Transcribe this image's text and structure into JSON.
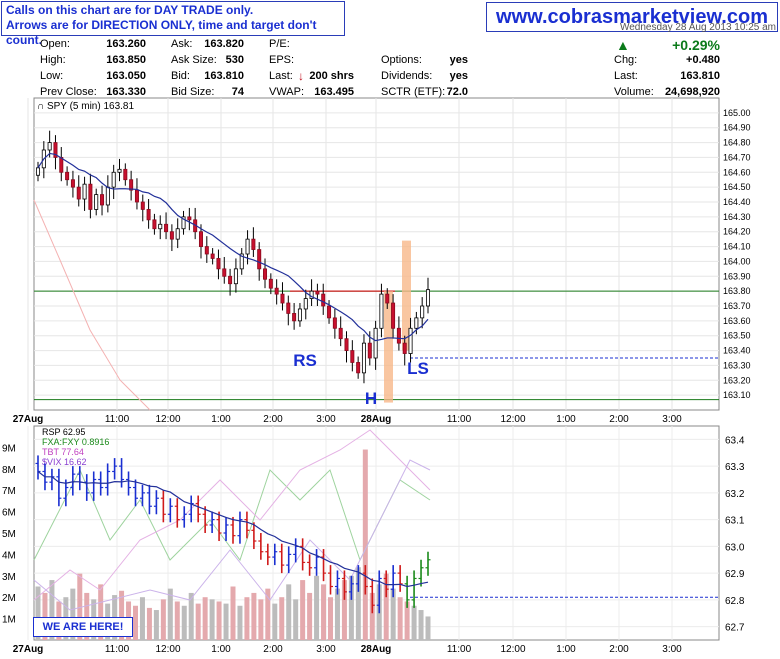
{
  "notice": {
    "line1": "Calls on this chart are for DAY TRADE only.",
    "line2": "Arrows are for DIRECTION ONLY, time and target don't count."
  },
  "site": "www.cobrasmarketview.com",
  "date_strip": "Wednesday 28 Aug 2013 10:25 am",
  "quote": {
    "open_label": "Open:",
    "open": "163.260",
    "high_label": "High:",
    "high": "163.850",
    "low_label": "Low:",
    "low": "163.050",
    "prev_close_label": "Prev Close:",
    "prev_close": "163.330",
    "ask_label": "Ask:",
    "ask": "163.820",
    "ask_size_label": "Ask Size:",
    "ask_size": "530",
    "bid_label": "Bid:",
    "bid": "163.810",
    "bid_size_label": "Bid Size:",
    "bid_size": "74",
    "pe_label": "P/E:",
    "eps_label": "EPS:",
    "last_label": "Last:",
    "last_trade": "200 shrs",
    "vwap_label": "VWAP:",
    "vwap": "163.495",
    "options_label": "Options:",
    "options": "yes",
    "dividends_label": "Dividends:",
    "dividends": "yes",
    "sctr_label": "SCTR (ETF):",
    "sctr": "72.0",
    "chg_pct": "+0.29%",
    "chg_label": "Chg:",
    "chg": "+0.480",
    "last2_label": "Last:",
    "last": "163.810",
    "volume_label": "Volume:",
    "volume": "24,698,920"
  },
  "we_are_here": "WE ARE HERE!",
  "chart_data": [
    {
      "type": "candlestick",
      "title": "SPY (5 min) 163.81",
      "ylim": [
        163.0,
        165.1
      ],
      "yticks": [
        "165.00",
        "164.90",
        "164.80",
        "164.70",
        "164.60",
        "164.50",
        "164.40",
        "164.30",
        "164.20",
        "164.10",
        "164.00",
        "163.90",
        "163.80",
        "163.70",
        "163.60",
        "163.50",
        "163.40",
        "163.30",
        "163.20",
        "163.10"
      ],
      "xticks": [
        "27Aug",
        "11:00",
        "12:00",
        "1:00",
        "2:00",
        "3:00",
        "28Aug",
        "11:00",
        "12:00",
        "1:00",
        "2:00",
        "3:00"
      ],
      "closes": [
        164.63,
        164.75,
        164.8,
        164.7,
        164.6,
        164.55,
        164.5,
        164.42,
        164.52,
        164.35,
        164.45,
        164.38,
        164.5,
        164.6,
        164.62,
        164.55,
        164.48,
        164.4,
        164.35,
        164.28,
        164.22,
        164.25,
        164.2,
        164.15,
        164.22,
        164.3,
        164.28,
        164.2,
        164.1,
        164.05,
        164.02,
        163.95,
        163.9,
        163.85,
        163.95,
        164.05,
        164.15,
        164.08,
        163.95,
        163.88,
        163.82,
        163.78,
        163.72,
        163.65,
        163.6,
        163.68,
        163.75,
        163.8,
        163.78,
        163.7,
        163.62,
        163.55,
        163.48,
        163.4,
        163.32,
        163.25,
        163.45,
        163.35,
        163.55,
        163.78,
        163.72,
        163.55,
        163.45,
        163.38,
        163.55,
        163.62,
        163.7,
        163.81
      ],
      "annotations": [
        {
          "text": "RS",
          "kind": "label"
        },
        {
          "text": "H",
          "kind": "label"
        },
        {
          "text": "LS",
          "kind": "label"
        }
      ],
      "reference_lines": [
        {
          "y": 163.8,
          "style": "solid",
          "color": "#1a7a1a"
        },
        {
          "y": 163.35,
          "style": "dashed",
          "color": "#1a2fd1"
        },
        {
          "y": 163.07,
          "style": "solid",
          "color": "#1a7a1a"
        }
      ],
      "series_legend": [
        {
          "name": "SPY (5 min) 163.81"
        }
      ]
    },
    {
      "type": "line",
      "title": "RSP 62.95",
      "legend": [
        {
          "text": "RSP 62.95",
          "color": "#000000"
        },
        {
          "text": "FXA:FXY 0.8916",
          "color": "#1a8a1a"
        },
        {
          "text": "TBT 77.64",
          "color": "#c040c0"
        },
        {
          "text": "$VIX 16.62",
          "color": "#8a3fd0"
        }
      ],
      "ylim": [
        62.65,
        63.45
      ],
      "yticks": [
        "63.4",
        "63.3",
        "63.2",
        "63.1",
        "63.0",
        "62.9",
        "62.8",
        "62.7"
      ],
      "volume_ticks": [
        "9M",
        "8M",
        "7M",
        "6M",
        "5M",
        "4M",
        "3M",
        "2M",
        "1M"
      ],
      "xticks": [
        "27Aug",
        "11:00",
        "12:00",
        "1:00",
        "2:00",
        "3:00",
        "28Aug",
        "11:00",
        "12:00",
        "1:00",
        "2:00",
        "3:00"
      ],
      "rsp": [
        63.28,
        63.24,
        63.26,
        63.18,
        63.22,
        63.27,
        63.24,
        63.2,
        63.25,
        63.22,
        63.28,
        63.3,
        63.25,
        63.22,
        63.18,
        63.2,
        63.15,
        63.18,
        63.12,
        63.15,
        63.1,
        63.12,
        63.16,
        63.12,
        63.08,
        63.1,
        63.05,
        63.08,
        63.04,
        63.1,
        63.06,
        63.02,
        62.98,
        62.96,
        62.98,
        62.93,
        62.97,
        63.0,
        62.94,
        62.92,
        62.96,
        62.9,
        62.85,
        62.88,
        62.83,
        62.86,
        62.9,
        62.85,
        62.78,
        62.88,
        62.84,
        62.9,
        62.86,
        62.8,
        62.88,
        62.92,
        62.95
      ],
      "volume_m": [
        2.5,
        2.2,
        2.8,
        1.8,
        2.0,
        2.4,
        3.1,
        2.2,
        1.9,
        2.6,
        1.7,
        2.1,
        2.3,
        1.8,
        1.6,
        2.0,
        1.5,
        1.4,
        1.9,
        2.4,
        1.8,
        1.6,
        2.2,
        1.7,
        2.0,
        1.9,
        1.8,
        1.7,
        2.5,
        1.6,
        2.0,
        2.2,
        1.9,
        2.4,
        1.7,
        2.0,
        2.6,
        1.9,
        2.8,
        2.2,
        3.0,
        2.6,
        2.0,
        2.4,
        2.8,
        3.0,
        3.4,
        8.9,
        2.2,
        2.6,
        3.1,
        2.4,
        2.0,
        1.8,
        1.6,
        1.4,
        1.1
      ],
      "reference_lines": [
        {
          "y": 62.81,
          "style": "dashed",
          "color": "#1a2fd1"
        }
      ]
    }
  ]
}
